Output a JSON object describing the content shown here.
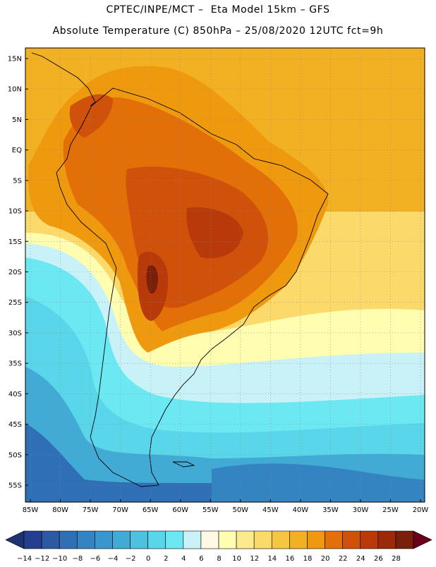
{
  "header": {
    "title_line1": "CPTEC/INPE/MCT –  Eta Model 15km – GFS",
    "title_line2": "Absolute Temperature (C) 850hPa – 25/08/2020 12UTC fct=9h"
  },
  "map": {
    "lat_labels": [
      "15N",
      "10N",
      "5N",
      "EQ",
      "5S",
      "10S",
      "15S",
      "20S",
      "25S",
      "30S",
      "35S",
      "40S",
      "45S",
      "50S",
      "55S"
    ],
    "lon_labels": [
      "85W",
      "80W",
      "75W",
      "70W",
      "65W",
      "60W",
      "55W",
      "50W",
      "45W",
      "40W",
      "35W",
      "30W",
      "25W",
      "20W"
    ]
  },
  "colorbar": {
    "labels": [
      "-14",
      "-12",
      "-10",
      "-8",
      "-6",
      "-4",
      "-2",
      "0",
      "2",
      "4",
      "6",
      "8",
      "10",
      "12",
      "14",
      "16",
      "18",
      "20",
      "22",
      "24",
      "26",
      "28"
    ],
    "colors": [
      "#243f8f",
      "#2b5aa3",
      "#2f6fb5",
      "#3584c2",
      "#3a97cc",
      "#41aad5",
      "#4fc1e0",
      "#5ad6ea",
      "#6be8f2",
      "#c8f2f8",
      "#fff8e6",
      "#fffdb0",
      "#fde98e",
      "#fbd96a",
      "#f6c642",
      "#f2b023",
      "#ef9a0e",
      "#e36f08",
      "#d0520a",
      "#b8390a",
      "#9a2a0a",
      "#7a1f0a"
    ],
    "arrow_left": "#1f3373",
    "arrow_right": "#6a001a"
  }
}
